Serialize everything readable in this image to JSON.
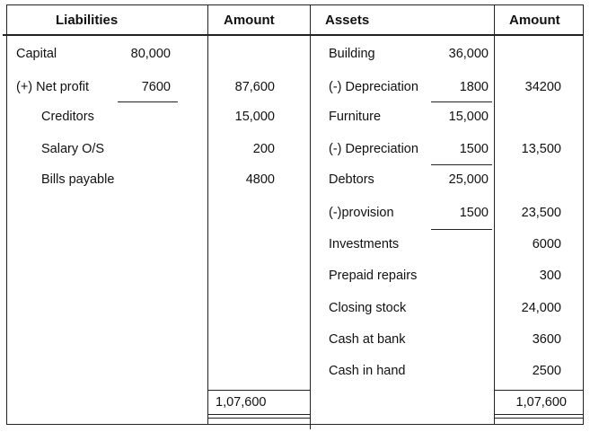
{
  "headers": {
    "liabilities": "Liabilities",
    "amount1": "Amount",
    "assets": "Assets",
    "amount2": "Amount"
  },
  "liabilities": [
    {
      "label": "Capital",
      "sub": "80,000",
      "amount": ""
    },
    {
      "label": "(+) Net profit",
      "sub": "7600",
      "amount": "87,600"
    },
    {
      "label": "Creditors",
      "sub": "",
      "amount": "15,000"
    },
    {
      "label": "Salary O/S",
      "sub": "",
      "amount": "200"
    },
    {
      "label": "Bills payable",
      "sub": "",
      "amount": "4800"
    }
  ],
  "assets": [
    {
      "label": "Building",
      "sub": "36,000",
      "amount": ""
    },
    {
      "label": "(-) Depreciation",
      "sub": "1800",
      "amount": "34200"
    },
    {
      "label": "Furniture",
      "sub": "15,000",
      "amount": ""
    },
    {
      "label": "(-) Depreciation",
      "sub": "1500",
      "amount": "13,500"
    },
    {
      "label": "Debtors",
      "sub": "25,000",
      "amount": ""
    },
    {
      "label": "(-)provision",
      "sub": "1500",
      "amount": "23,500"
    },
    {
      "label": "Investments",
      "sub": "",
      "amount": "6000"
    },
    {
      "label": "Prepaid repairs",
      "sub": "",
      "amount": "300"
    },
    {
      "label": "Closing stock",
      "sub": "",
      "amount": "24,000"
    },
    {
      "label": "Cash at bank",
      "sub": "",
      "amount": "3600"
    },
    {
      "label": "Cash in hand",
      "sub": "",
      "amount": "2500"
    }
  ],
  "totals": {
    "liabilities": "1,07,600",
    "assets": "1,07,600"
  }
}
